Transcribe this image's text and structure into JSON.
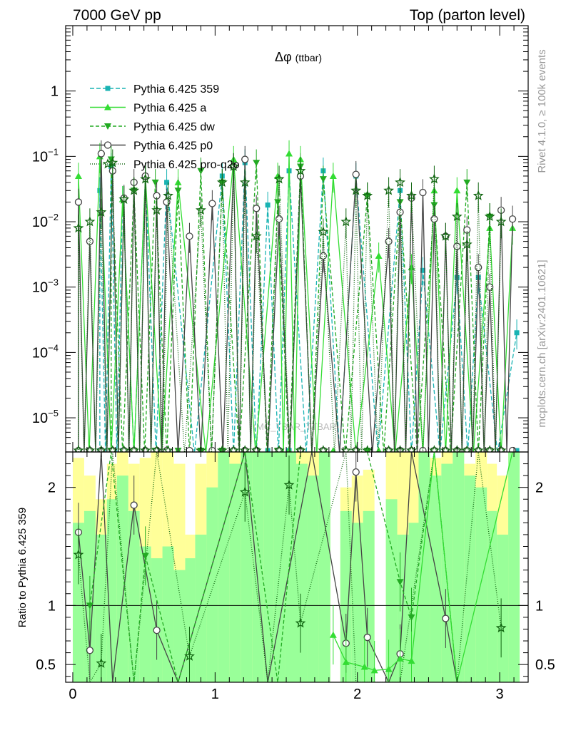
{
  "header": {
    "left": "7000 GeV pp",
    "right": "Top (parton level)"
  },
  "side_labels": {
    "rivet": "Rivet 4.1.0, ≥ 100k events",
    "mcplots": "mcplots.cern.ch [arXiv:2401.10621]"
  },
  "watermark": "(MC_TBAR_TTBAR)",
  "colors": {
    "band_yellow": "#ffff99",
    "band_green": "#99ff99",
    "s359": "#19b3b3",
    "a": "#33dd33",
    "dw": "#22aa22",
    "p0": "#444444",
    "pro_q2o": "#116611"
  },
  "chart_data": [
    {
      "type": "line",
      "title": "Δφ (ttbar)",
      "title_main": "Δφ",
      "title_sub": "(ttbar)",
      "yscale": "log",
      "xlim": [
        -0.05,
        3.2
      ],
      "ylim": [
        3e-06,
        10
      ],
      "ytick_labels": [
        {
          "value": 1,
          "label": "1"
        },
        {
          "value": 0.1,
          "label": "10",
          "exp": "−1"
        },
        {
          "value": 0.01,
          "label": "10",
          "exp": "−2"
        },
        {
          "value": 0.001,
          "label": "10",
          "exp": "−3"
        },
        {
          "value": 0.0001,
          "label": "10",
          "exp": "−4"
        },
        {
          "value": 1e-05,
          "label": "10",
          "exp": "−5"
        }
      ],
      "legend_position": "top-left",
      "series": [
        {
          "name": "Pythia 6.425 359",
          "key": "s359",
          "marker": "square",
          "dash": "6,3",
          "x": [
            0.19,
            0.27,
            0.35,
            0.51,
            0.66,
            1.05,
            1.21,
            1.37,
            1.52,
            1.76,
            1.99,
            2.3,
            2.46,
            2.7,
            2.85,
            3.12
          ],
          "y": [
            0.03,
            0.07,
            0.022,
            0.05,
            0.04,
            0.05,
            0.08,
            0.018,
            0.06,
            0.06,
            0.05,
            0.03,
            0.0018,
            0.0014,
            0.0014,
            0.0002
          ]
        },
        {
          "name": "Pythia 6.425 a",
          "key": "a",
          "marker": "triangle-up",
          "dash": "",
          "x": [
            0.04,
            0.19,
            0.35,
            0.51,
            0.74,
            1.13,
            1.44,
            1.52,
            1.6,
            1.83,
            2.15,
            2.38,
            2.54,
            2.7,
            2.93,
            3.09
          ],
          "y": [
            0.05,
            0.1,
            0.022,
            0.05,
            0.04,
            0.09,
            0.05,
            0.11,
            0.09,
            0.05,
            0.003,
            0.002,
            0.03,
            0.03,
            0.008,
            0.008
          ]
        },
        {
          "name": "Pythia 6.425 dw",
          "key": "dw",
          "marker": "triangle-down",
          "dash": "5,3",
          "x": [
            0.27,
            0.43,
            0.58,
            0.74,
            0.9,
            1.05,
            1.29,
            1.44,
            1.6,
            1.76,
            2.07,
            2.3,
            2.54,
            2.77,
            2.93
          ],
          "y": [
            0.09,
            0.03,
            0.04,
            0.03,
            0.06,
            0.04,
            0.08,
            0.02,
            0.07,
            0.045,
            0.025,
            0.02,
            0.018,
            0.04,
            0.012
          ]
        },
        {
          "name": "Pythia 6.425 p0",
          "key": "p0",
          "marker": "circle-open",
          "dash": "",
          "x": [
            0.04,
            0.12,
            0.2,
            0.28,
            0.36,
            0.43,
            0.51,
            0.59,
            0.66,
            0.82,
            0.98,
            1.13,
            1.21,
            1.29,
            1.45,
            1.6,
            1.76,
            1.99,
            2.22,
            2.3,
            2.38,
            2.46,
            2.54,
            2.62,
            2.7,
            2.77,
            2.85,
            2.93,
            3.01,
            3.09
          ],
          "y": [
            0.02,
            0.005,
            0.11,
            0.06,
            0.023,
            0.04,
            0.05,
            0.025,
            0.02,
            0.006,
            0.019,
            0.07,
            0.09,
            0.016,
            0.011,
            0.05,
            0.003,
            0.053,
            0.005,
            0.014,
            0.023,
            0.028,
            0.011,
            0.006,
            0.0042,
            0.0075,
            0.002,
            0.001,
            0.015,
            0.011
          ]
        },
        {
          "name": "Pythia 6.425 pro-q2o",
          "key": "pro_q2o",
          "marker": "star",
          "dash": "1,2",
          "x": [
            0.04,
            0.12,
            0.2,
            0.28,
            0.36,
            0.43,
            0.51,
            0.59,
            0.67,
            0.9,
            1.05,
            1.13,
            1.21,
            1.29,
            1.45,
            1.6,
            1.76,
            1.92,
            1.99,
            2.07,
            2.22,
            2.3,
            2.38,
            2.54,
            2.62,
            2.7,
            2.77,
            2.85,
            2.93,
            3.01
          ],
          "y": [
            0.008,
            0.01,
            0.014,
            0.08,
            0.022,
            0.03,
            0.045,
            0.015,
            0.025,
            0.015,
            0.04,
            0.07,
            0.04,
            0.006,
            0.045,
            0.06,
            0.007,
            0.01,
            0.03,
            0.025,
            0.03,
            0.04,
            0.025,
            0.045,
            0.006,
            0.012,
            0.0045,
            0.025,
            0.012,
            0.01
          ]
        }
      ]
    },
    {
      "type": "line",
      "ylabel": "Ratio to Pythia 6.425 359",
      "xlim": [
        -0.05,
        3.2
      ],
      "ylim": [
        0.35,
        2.3
      ],
      "reference_line": 1,
      "ytick_labels": [
        {
          "value": 0.5,
          "label": "0.5"
        },
        {
          "value": 1,
          "label": "1"
        },
        {
          "value": 2,
          "label": "2"
        }
      ],
      "xtick_labels": [
        {
          "value": 0,
          "label": "0"
        },
        {
          "value": 1,
          "label": "1"
        },
        {
          "value": 2,
          "label": "2"
        },
        {
          "value": 3,
          "label": "3"
        }
      ],
      "bands": {
        "edges": [
          0.0,
          0.08,
          0.16,
          0.24,
          0.31,
          0.39,
          0.47,
          0.55,
          0.63,
          0.71,
          0.79,
          0.86,
          0.94,
          1.02,
          1.1,
          1.18,
          1.26,
          1.34,
          1.41,
          1.49,
          1.57,
          1.65,
          1.73,
          1.81,
          1.88,
          1.96,
          2.04,
          2.12,
          2.2,
          2.28,
          2.36,
          2.43,
          2.51,
          2.59,
          2.67,
          2.75,
          2.83,
          2.91,
          2.98,
          3.06,
          3.14
        ],
        "yellow": [
          [
            0.0,
            2.25
          ],
          [
            0.0,
            2.1
          ],
          [
            0.0,
            1.9
          ],
          [
            0.0,
            2.2
          ],
          [
            0.0,
            2.3
          ],
          [
            0.0,
            2.2
          ],
          [
            0.0,
            2.25
          ],
          [
            0.0,
            2.3
          ],
          [
            0.0,
            2.3
          ],
          [
            0.0,
            2.2
          ],
          [
            0.0,
            1.6
          ],
          [
            0.0,
            2.2
          ],
          [
            0.0,
            2.3
          ],
          [
            0.0,
            2.3
          ],
          [
            0.0,
            2.3
          ],
          [
            0.0,
            2.3
          ],
          [
            0.0,
            2.3
          ],
          [
            0.0,
            2.3
          ],
          [
            0.0,
            2.3
          ],
          [
            0.0,
            2.3
          ],
          [
            0.0,
            2.3
          ],
          [
            0.0,
            2.3
          ],
          [
            0.0,
            2.3
          ],
          [
            0.0,
            0.0
          ],
          [
            0.0,
            2.0
          ],
          [
            0.0,
            2.1
          ],
          [
            0.0,
            2.15
          ],
          [
            0.0,
            0.0
          ],
          [
            0.0,
            2.3
          ],
          [
            0.0,
            2.3
          ],
          [
            0.0,
            2.3
          ],
          [
            0.0,
            2.3
          ],
          [
            0.0,
            2.25
          ],
          [
            0.0,
            2.3
          ],
          [
            0.0,
            2.3
          ],
          [
            0.0,
            2.2
          ],
          [
            0.0,
            2.3
          ],
          [
            0.0,
            2.2
          ],
          [
            0.0,
            2.1
          ],
          [
            0.0,
            2.3
          ]
        ],
        "green": [
          [
            0.0,
            1.7
          ],
          [
            0.0,
            1.8
          ],
          [
            0.0,
            1.6
          ],
          [
            0.0,
            1.9
          ],
          [
            0.0,
            2.1
          ],
          [
            0.0,
            1.8
          ],
          [
            0.0,
            1.5
          ],
          [
            0.0,
            1.4
          ],
          [
            0.0,
            1.5
          ],
          [
            0.0,
            1.3
          ],
          [
            0.0,
            1.4
          ],
          [
            0.0,
            1.6
          ],
          [
            0.0,
            2.0
          ],
          [
            0.0,
            2.3
          ],
          [
            0.0,
            2.2
          ],
          [
            0.0,
            2.3
          ],
          [
            0.0,
            2.3
          ],
          [
            0.0,
            2.3
          ],
          [
            0.0,
            2.3
          ],
          [
            0.0,
            2.3
          ],
          [
            0.0,
            2.2
          ],
          [
            0.0,
            2.1
          ],
          [
            0.0,
            2.3
          ],
          [
            0.0,
            0.0
          ],
          [
            0.0,
            1.8
          ],
          [
            0.0,
            1.7
          ],
          [
            0.0,
            1.8
          ],
          [
            0.0,
            0.0
          ],
          [
            0.0,
            1.9
          ],
          [
            0.0,
            1.6
          ],
          [
            0.0,
            1.7
          ],
          [
            0.0,
            2.3
          ],
          [
            0.0,
            2.1
          ],
          [
            0.0,
            2.2
          ],
          [
            0.0,
            2.3
          ],
          [
            0.0,
            2.1
          ],
          [
            0.0,
            2.0
          ],
          [
            0.0,
            1.8
          ],
          [
            0.0,
            1.6
          ],
          [
            0.0,
            2.3
          ]
        ]
      },
      "series": [
        {
          "key": "p0",
          "marker": "circle-open",
          "dash": "",
          "x": [
            0.04,
            0.12,
            0.2,
            0.28,
            0.43,
            0.59,
            0.74,
            1.21,
            1.37,
            1.68,
            1.92,
            1.99,
            2.07,
            2.22,
            2.3,
            2.38,
            2.62,
            2.7
          ],
          "y": [
            1.62,
            0.62,
            2.3,
            0.35,
            1.85,
            0.79,
            0.35,
            2.3,
            0.35,
            2.3,
            0.68,
            2.13,
            0.73,
            0.35,
            0.59,
            2.3,
            0.89,
            0.35
          ]
        },
        {
          "key": "pro_q2o",
          "marker": "star",
          "dash": "1,2",
          "x": [
            0.04,
            0.12,
            0.2,
            0.28,
            0.43,
            0.59,
            0.82,
            1.21,
            1.37,
            1.52,
            1.6,
            1.92,
            1.99,
            2.3,
            2.54,
            2.7,
            2.85,
            3.01
          ],
          "y": [
            1.43,
            0.35,
            0.51,
            2.3,
            0.35,
            2.3,
            0.57,
            1.96,
            0.35,
            2.02,
            0.85,
            2.3,
            0.35,
            0.35,
            2.3,
            0.35,
            2.3,
            0.81
          ]
        },
        {
          "key": "dw",
          "marker": "triangle-down",
          "dash": "5,3",
          "x": [
            0.12,
            0.27,
            0.43,
            0.51,
            0.74,
            1.21,
            1.44,
            1.6,
            2.07,
            2.3,
            2.38,
            2.54,
            2.7,
            2.93
          ],
          "y": [
            1.0,
            2.3,
            0.35,
            1.42,
            0.35,
            2.3,
            0.35,
            2.3,
            2.3,
            1.2,
            0.9,
            2.3,
            0.35,
            0.35
          ]
        },
        {
          "key": "a",
          "marker": "triangle-up",
          "dash": "",
          "x": [
            1.83,
            1.92,
            2.05,
            2.12,
            2.22,
            2.3,
            2.38,
            2.54,
            2.7,
            3.09
          ],
          "y": [
            0.75,
            0.52,
            0.48,
            0.45,
            0.46,
            0.55,
            0.53,
            2.3,
            0.35,
            2.3
          ]
        }
      ]
    }
  ]
}
